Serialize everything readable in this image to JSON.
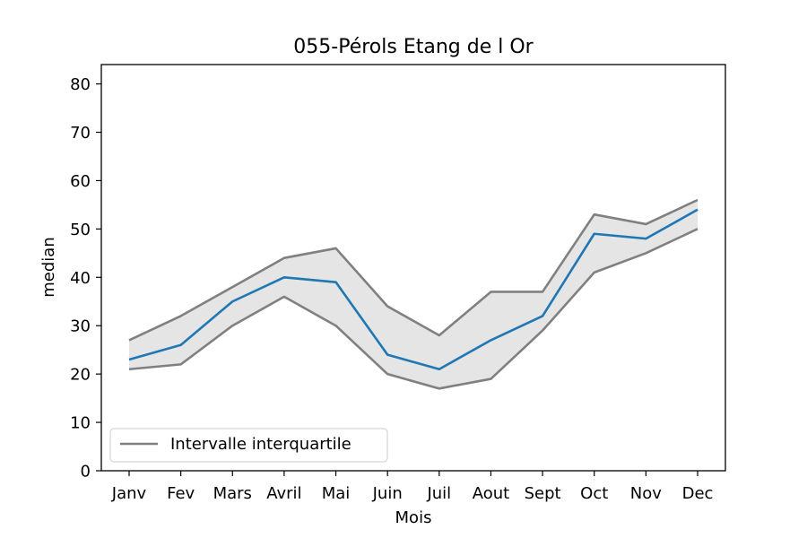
{
  "chart_data": {
    "type": "line",
    "title": "055-Pérols Etang de l Or",
    "xlabel": "Mois",
    "ylabel": "median",
    "categories": [
      "Janv",
      "Fev",
      "Mars",
      "Avril",
      "Mai",
      "Juin",
      "Juil",
      "Aout",
      "Sept",
      "Oct",
      "Nov",
      "Dec"
    ],
    "ylim": [
      0,
      84
    ],
    "yticks": [
      0,
      10,
      20,
      30,
      40,
      50,
      60,
      70,
      80
    ],
    "grid": false,
    "legend_position": "lower-left",
    "series": [
      {
        "role": "median",
        "color": "#1f77b4",
        "values": [
          23,
          26,
          35,
          40,
          39,
          24,
          21,
          27,
          32,
          49,
          48,
          54
        ]
      },
      {
        "name": "Intervalle interquartile",
        "role": "upper-quartile",
        "color": "#808080",
        "values": [
          27,
          32,
          38,
          44,
          46,
          34,
          28,
          37,
          37,
          53,
          51,
          56
        ]
      },
      {
        "role": "lower-quartile",
        "color": "#808080",
        "values": [
          21,
          22,
          30,
          36,
          30,
          20,
          17,
          19,
          29,
          41,
          45,
          50
        ]
      }
    ],
    "band_fill_color": "#e5e5e5"
  }
}
